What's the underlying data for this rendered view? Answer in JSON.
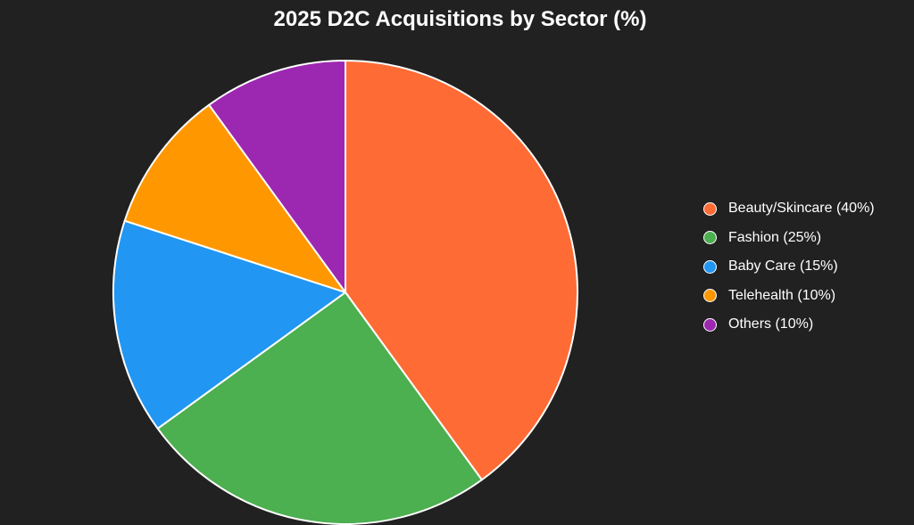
{
  "chart_data": {
    "type": "pie",
    "title": "2025 D2C Acquisitions by Sector (%)",
    "categories": [
      "Beauty/Skincare",
      "Fashion",
      "Baby Care",
      "Telehealth",
      "Others"
    ],
    "values": [
      40,
      25,
      15,
      10,
      10
    ],
    "legend_labels": [
      "Beauty/Skincare (40%)",
      "Fashion (25%)",
      "Baby Care (15%)",
      "Telehealth (10%)",
      "Others (10%)"
    ],
    "colors": [
      "#FF6B35",
      "#4CAF50",
      "#2196F3",
      "#FF9800",
      "#9C27B0"
    ],
    "legend_position": "right",
    "start_angle": "top, clockwise"
  }
}
